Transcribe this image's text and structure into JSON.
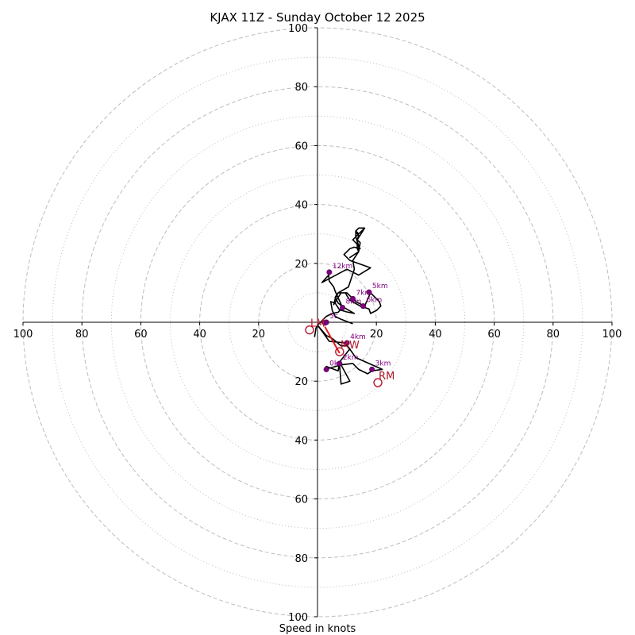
{
  "chart_data": {
    "type": "scatter",
    "title": "KJAX 11Z - Sunday October 12 2025",
    "xlabel": "Speed in knots",
    "max_speed": 100,
    "ring_major": [
      20,
      40,
      60,
      80,
      100
    ],
    "ring_minor": [
      10,
      30,
      50,
      70,
      90
    ],
    "tick_labels": {
      "x_values": [
        -100,
        -80,
        -60,
        -40,
        -20,
        20,
        40,
        60,
        80,
        100
      ],
      "y_values": [
        100,
        80,
        60,
        40,
        20,
        -20,
        -40,
        -60,
        -80,
        -100
      ],
      "x_text": [
        "100",
        "80",
        "60",
        "40",
        "20",
        "20",
        "40",
        "60",
        "80",
        "100"
      ],
      "y_text": [
        "100",
        "80",
        "60",
        "40",
        "20",
        "20",
        "40",
        "60",
        "80",
        "100"
      ]
    },
    "hodograph_trace": [
      [
        -1,
        -5
      ],
      [
        -0.5,
        -2
      ],
      [
        0,
        -1
      ],
      [
        3,
        -4.5
      ],
      [
        5,
        -5.5
      ],
      [
        8,
        -8
      ],
      [
        10,
        -8
      ],
      [
        11,
        -9
      ],
      [
        7.5,
        -13.5
      ],
      [
        7,
        -16.5
      ],
      [
        3,
        -15
      ],
      [
        2.5,
        -16
      ],
      [
        8,
        -14.5
      ],
      [
        11,
        -20
      ],
      [
        8,
        -21
      ],
      [
        7.5,
        -14.5
      ],
      [
        12,
        -14
      ],
      [
        14,
        -16
      ],
      [
        17,
        -17.5
      ],
      [
        18.5,
        -16.5
      ],
      [
        22,
        -16
      ],
      [
        13,
        -12
      ],
      [
        9.5,
        -7
      ],
      [
        4,
        -6.5
      ],
      [
        1.5,
        -3
      ],
      [
        0,
        -1
      ],
      [
        3,
        2
      ],
      [
        5,
        3
      ],
      [
        6,
        3.2
      ],
      [
        7,
        3.4
      ],
      [
        8.5,
        5
      ],
      [
        6,
        10.5
      ],
      [
        5.5,
        12
      ],
      [
        4,
        14
      ],
      [
        3.8,
        16
      ],
      [
        1.5,
        13.5
      ],
      [
        10,
        18
      ],
      [
        14,
        16
      ],
      [
        18,
        18.5
      ],
      [
        11,
        21
      ],
      [
        9,
        23
      ],
      [
        11,
        25
      ],
      [
        12.5,
        25.5
      ],
      [
        14.5,
        25
      ],
      [
        13,
        27
      ],
      [
        12,
        28
      ],
      [
        13,
        29
      ],
      [
        14,
        30
      ],
      [
        16,
        32
      ],
      [
        14,
        32
      ],
      [
        13,
        31
      ],
      [
        13,
        29
      ],
      [
        14,
        26
      ],
      [
        14,
        24
      ],
      [
        11,
        22
      ],
      [
        14,
        24
      ],
      [
        14.5,
        27
      ],
      [
        13.5,
        28
      ],
      [
        14,
        29.5
      ],
      [
        13,
        30.5
      ],
      [
        13,
        31
      ],
      [
        14,
        30
      ],
      [
        16,
        32
      ],
      [
        13.5,
        28
      ],
      [
        13.5,
        25
      ],
      [
        14,
        24
      ],
      [
        12,
        21
      ],
      [
        12.5,
        18
      ],
      [
        11.5,
        15
      ],
      [
        10.5,
        12
      ],
      [
        7,
        10
      ],
      [
        6,
        8
      ],
      [
        5.5,
        6
      ],
      [
        8,
        10
      ],
      [
        10,
        10
      ],
      [
        13,
        7
      ],
      [
        16,
        5.5
      ],
      [
        18,
        10
      ],
      [
        21,
        7
      ],
      [
        21.5,
        5.5
      ],
      [
        20,
        4
      ],
      [
        18,
        3
      ],
      [
        17.5,
        4.5
      ],
      [
        14.5,
        5.5
      ],
      [
        11,
        7.5
      ],
      [
        10,
        9
      ],
      [
        9.5,
        10
      ],
      [
        7,
        10
      ],
      [
        6,
        8.5
      ],
      [
        7,
        6.5
      ],
      [
        9,
        5
      ],
      [
        12.5,
        3
      ],
      [
        10,
        3.5
      ],
      [
        7.5,
        4.2
      ],
      [
        6,
        6.5
      ],
      [
        4.5,
        7
      ],
      [
        5,
        4
      ],
      [
        6,
        2
      ],
      [
        8,
        1
      ],
      [
        12,
        -0.5
      ]
    ],
    "height_markers": [
      {
        "label": "",
        "u": 2.5,
        "v": -0.2
      },
      {
        "label": "2km",
        "u": 7.5,
        "v": -14
      },
      {
        "label": "3km",
        "u": 18.5,
        "v": -16
      },
      {
        "label": "4km",
        "u": 10,
        "v": -7
      },
      {
        "label": "5km",
        "u": 17.5,
        "v": 10.2
      },
      {
        "label": "6km",
        "u": 15.5,
        "v": 5.5
      },
      {
        "label": "7km",
        "u": 12,
        "v": 8
      },
      {
        "label": "8km",
        "u": 8.5,
        "v": 5
      },
      {
        "label": "12km",
        "u": 4,
        "v": 17
      },
      {
        "label": "0k",
        "u": 3,
        "v": -16
      },
      {
        "label": "5c",
        "u": 3,
        "v": 0
      }
    ],
    "storm_motion": [
      {
        "label": "LM",
        "u": -2.7,
        "v": -2.6
      },
      {
        "label": "MW",
        "u": 7.5,
        "v": -10
      },
      {
        "label": "RM",
        "u": 20.5,
        "v": -20.5
      }
    ],
    "shear_vector": {
      "from": [
        2.5,
        -1.5
      ],
      "to": [
        7.5,
        -10.5
      ]
    },
    "colors": {
      "trace": "#000000",
      "markers": "#800080",
      "motion": "#b2182b",
      "shear": "#e31a1c",
      "grid": "#bdbdbd"
    }
  }
}
